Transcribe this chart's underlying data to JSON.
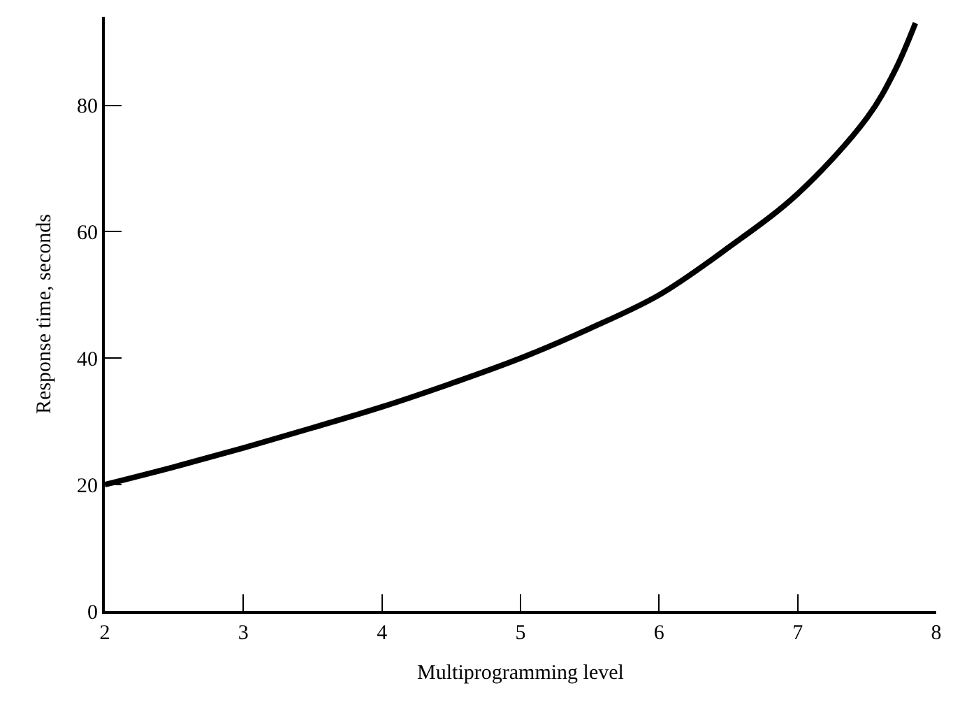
{
  "chart_data": {
    "type": "line",
    "xlabel": "Multiprogramming level",
    "ylabel": "Response time, seconds",
    "series": [
      {
        "color": "#000000",
        "x": [
          2,
          2.5,
          3,
          3.5,
          4,
          4.5,
          5,
          5.5,
          6,
          6.5,
          7,
          7.5,
          7.7,
          7.85
        ],
        "values": [
          20,
          22.8,
          25.8,
          29,
          32.3,
          36,
          40,
          44.7,
          50,
          57.5,
          66,
          78,
          85.4,
          93
        ]
      }
    ],
    "xlim": [
      2,
      8
    ],
    "xticks": [
      2,
      3,
      4,
      5,
      6,
      7,
      8
    ],
    "ylim": [
      0,
      94
    ],
    "yticks": [
      0,
      20,
      40,
      60,
      80
    ],
    "marker": "none",
    "line_style": "solid"
  }
}
